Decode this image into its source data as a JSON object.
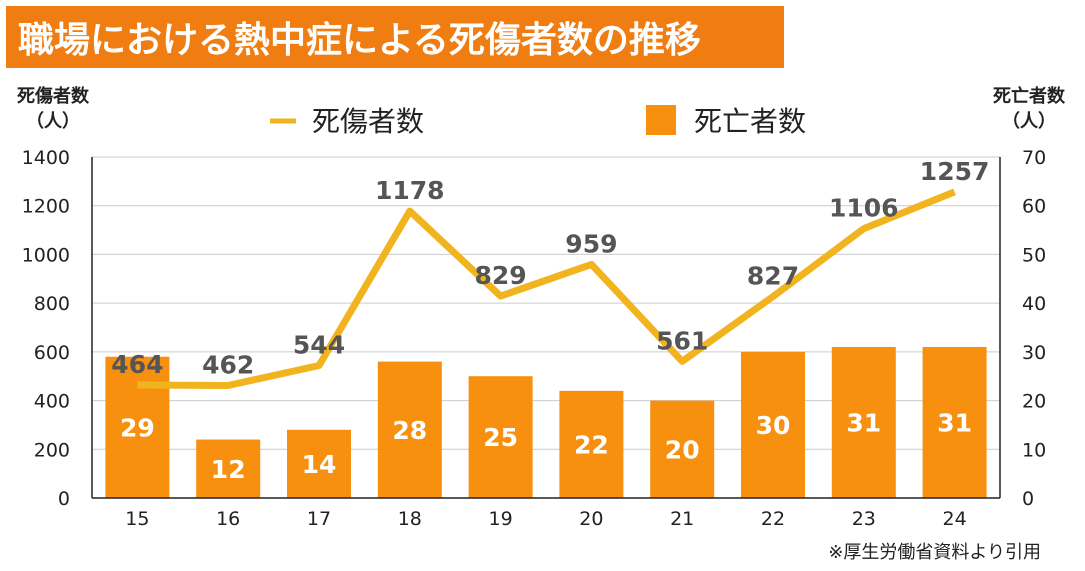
{
  "title": "職場における熱中症による死傷者数の推移",
  "left_axis_caption": [
    "死傷者数",
    "（人）"
  ],
  "right_axis_caption": [
    "死亡者数",
    "（人）"
  ],
  "source_note": "※厚生労働省資料より引用",
  "colors": {
    "title_bg": "#f07d12",
    "bar": "#f8900f",
    "line": "#f2b41e",
    "grid": "#cccccc"
  },
  "chart_data": {
    "type": "bar+line",
    "categories": [
      "15",
      "16",
      "17",
      "18",
      "19",
      "20",
      "21",
      "22",
      "23",
      "24"
    ],
    "series": [
      {
        "name": "死傷者数",
        "type": "line",
        "axis": "left",
        "values": [
          464,
          462,
          544,
          1178,
          829,
          959,
          561,
          827,
          1106,
          1257
        ]
      },
      {
        "name": "死亡者数",
        "type": "bar",
        "axis": "right",
        "values": [
          29,
          12,
          14,
          28,
          25,
          22,
          20,
          30,
          31,
          31
        ]
      }
    ],
    "y_left": {
      "min": 0,
      "max": 1400,
      "ticks": [
        0,
        200,
        400,
        600,
        800,
        1000,
        1200,
        1400
      ]
    },
    "y_right": {
      "min": 0,
      "max": 70,
      "ticks": [
        0,
        10,
        20,
        30,
        40,
        50,
        60,
        70
      ]
    },
    "legend_position": "top-center",
    "grid": true
  }
}
